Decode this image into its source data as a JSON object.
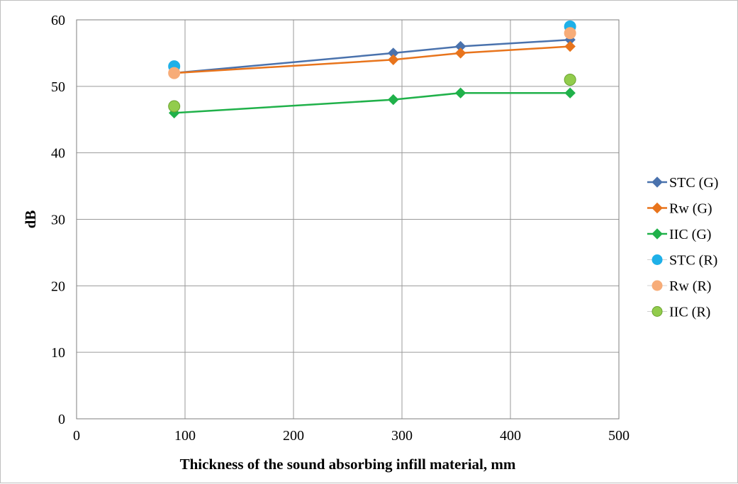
{
  "chart_data": {
    "type": "scatter",
    "title": "",
    "xlabel": "Thickness of the sound absorbing infill material, mm",
    "ylabel": "dB",
    "xlim": [
      0,
      500
    ],
    "ylim": [
      0,
      60
    ],
    "xticks": [
      0,
      100,
      200,
      300,
      400,
      500
    ],
    "yticks": [
      0,
      10,
      20,
      30,
      40,
      50,
      60
    ],
    "grid": true,
    "legend_position": "right",
    "series": [
      {
        "name": "STC (G)",
        "style": "line-diamond",
        "color": "#4a72ad",
        "points": [
          [
            90,
            52
          ],
          [
            292,
            55
          ],
          [
            354,
            56
          ],
          [
            455,
            57
          ]
        ]
      },
      {
        "name": "Rw (G)",
        "style": "line-diamond",
        "color": "#e8741c",
        "points": [
          [
            90,
            52
          ],
          [
            292,
            54
          ],
          [
            354,
            55
          ],
          [
            455,
            56
          ]
        ]
      },
      {
        "name": "IIC (G)",
        "style": "line-diamond",
        "color": "#20b14a",
        "points": [
          [
            90,
            46
          ],
          [
            292,
            48
          ],
          [
            354,
            49
          ],
          [
            455,
            49
          ]
        ]
      },
      {
        "name": "STC (R)",
        "style": "circle",
        "color": "#1eb0e8",
        "points": [
          [
            90,
            53
          ],
          [
            455,
            59
          ]
        ]
      },
      {
        "name": "Rw (R)",
        "style": "circle",
        "color": "#f7ac78",
        "points": [
          [
            90,
            52
          ],
          [
            455,
            58
          ]
        ]
      },
      {
        "name": "IIC (R)",
        "style": "circle",
        "color": "#92cc4c",
        "stroke": "#6aa22f",
        "points": [
          [
            90,
            47
          ],
          [
            455,
            51
          ]
        ]
      }
    ]
  }
}
